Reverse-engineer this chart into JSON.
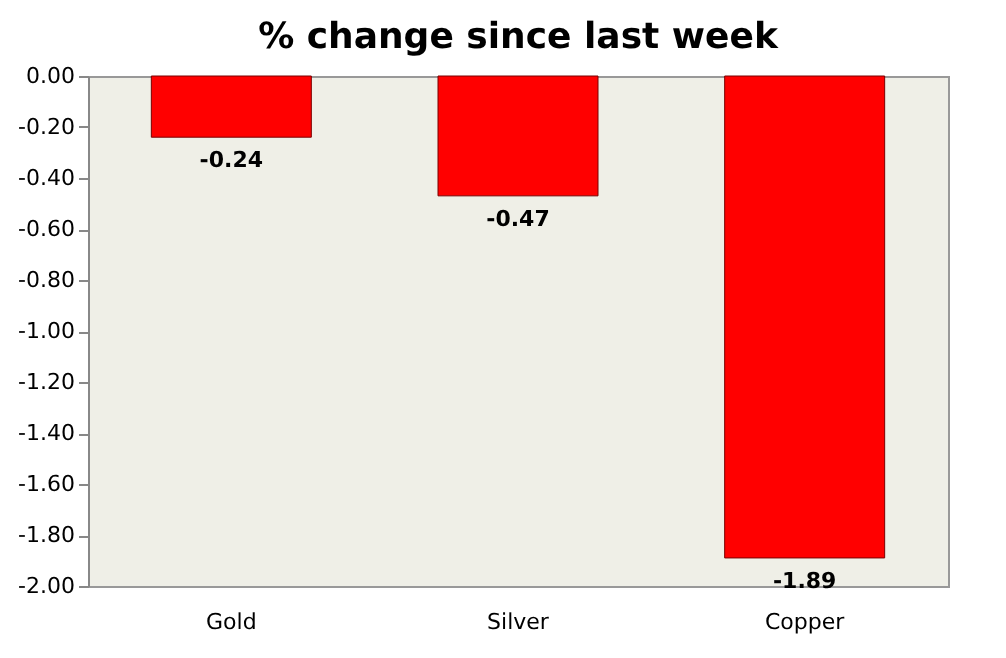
{
  "chart_data": {
    "type": "bar",
    "title": "% change since last week",
    "categories": [
      "Gold",
      "Silver",
      "Copper"
    ],
    "values": [
      -0.24,
      -0.47,
      -1.89
    ],
    "color": "#ff0000",
    "ylim": [
      -2,
      0
    ],
    "yticks": [
      {
        "value": 0,
        "label": "0.00"
      },
      {
        "value": -0.2,
        "label": "-0.20"
      },
      {
        "value": -0.4,
        "label": "-0.40"
      },
      {
        "value": -0.6,
        "label": "-0.60"
      },
      {
        "value": -0.8,
        "label": "-0.80"
      },
      {
        "value": -1.0,
        "label": "-1.00"
      },
      {
        "value": -1.2,
        "label": "-1.20"
      },
      {
        "value": -1.4,
        "label": "-1.40"
      },
      {
        "value": -1.6,
        "label": "-1.60"
      },
      {
        "value": -1.8,
        "label": "-1.80"
      },
      {
        "value": -2.0,
        "label": "-2.00"
      }
    ],
    "data_labels": true,
    "grid": false
  }
}
